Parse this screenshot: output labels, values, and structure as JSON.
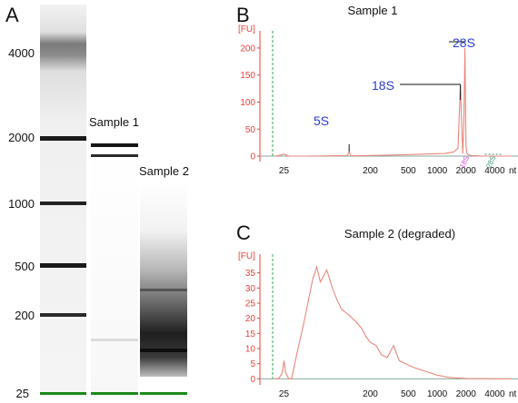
{
  "gel": {
    "panel_letter": "A",
    "ladder_sizes": [
      "4000",
      "2000",
      "1000",
      "500",
      "200",
      "25"
    ],
    "lane_labels": [
      "Sample 1",
      "Sample 2"
    ]
  },
  "chart_data": [
    {
      "type": "line",
      "panel_letter": "B",
      "title": "Sample 1",
      "ylabel": "[FU]",
      "xlabel": "nt",
      "yticks": [
        0,
        50,
        100,
        150,
        200
      ],
      "xticks": [
        "25",
        "200",
        "500",
        "1000",
        "2000",
        "4000"
      ],
      "ylim": [
        -10,
        225
      ],
      "x_scale": "log",
      "peak_labels": [
        "5S",
        "18S",
        "28S"
      ],
      "marker_labels": [
        "18S",
        "28S"
      ],
      "series": [
        {
          "x": [
            20,
            22,
            25,
            28,
            40,
            80,
            115,
            120,
            125,
            135,
            180,
            300,
            500,
            800,
            1200,
            1500,
            1650,
            1750,
            1850,
            1900,
            1950,
            2000,
            2050,
            2150,
            2300,
            2600,
            3000,
            4000,
            6000
          ],
          "values": [
            0,
            1,
            4,
            0,
            0,
            0.5,
            1,
            8,
            1,
            0.5,
            1,
            2,
            3,
            4,
            5,
            8,
            15,
            130,
            5,
            60,
            200,
            18,
            5,
            2,
            1,
            0.5,
            0,
            0,
            0
          ]
        }
      ]
    },
    {
      "type": "line",
      "panel_letter": "C",
      "title": "Sample 2 (degraded)",
      "ylabel": "[FU]",
      "xlabel": "nt",
      "yticks": [
        0,
        5,
        10,
        15,
        20,
        25,
        30,
        35
      ],
      "xticks": [
        "25",
        "200",
        "500",
        "1000",
        "2000",
        "4000"
      ],
      "ylim": [
        -2,
        40
      ],
      "x_scale": "log",
      "series": [
        {
          "x": [
            20,
            22,
            24,
            25,
            26,
            28,
            30,
            35,
            40,
            45,
            50,
            55,
            60,
            65,
            70,
            75,
            80,
            90,
            100,
            120,
            140,
            160,
            180,
            200,
            230,
            260,
            300,
            350,
            400,
            500,
            600,
            800,
            1000,
            1300,
            2000,
            4000,
            6000
          ],
          "values": [
            0,
            0,
            2,
            6,
            2,
            0,
            0,
            10,
            18,
            26,
            33,
            37,
            32,
            34,
            36,
            33,
            30,
            26,
            23,
            21,
            19,
            17,
            14,
            12,
            11,
            8,
            7,
            11,
            6,
            4.5,
            3.5,
            2.2,
            1.2,
            0.5,
            0.1,
            0,
            0
          ]
        }
      ]
    }
  ]
}
